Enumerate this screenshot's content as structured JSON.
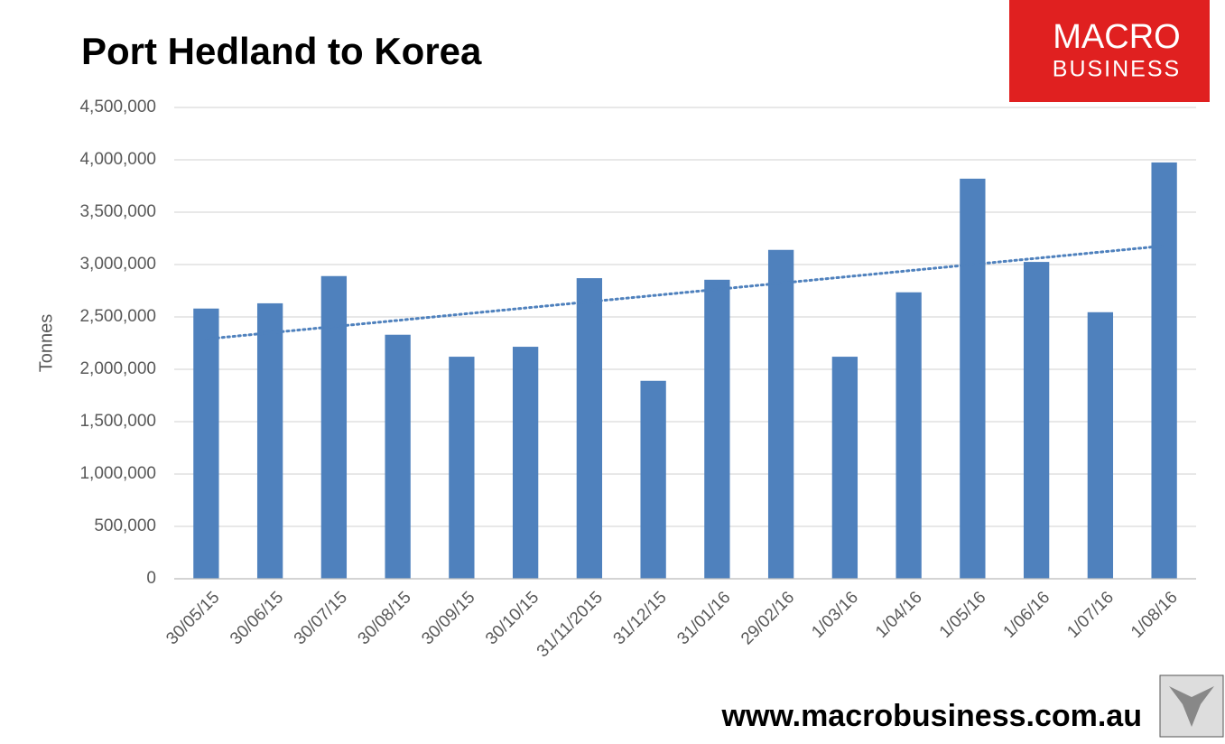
{
  "chart_data": {
    "type": "bar",
    "title": "Port Hedland to Korea",
    "y_label": "Tonnes",
    "categories": [
      "30/05/15",
      "30/06/15",
      "30/07/15",
      "30/08/15",
      "30/09/15",
      "30/10/15",
      "31/11/2015",
      "31/12/15",
      "31/01/16",
      "29/02/16",
      "1/03/16",
      "1/04/16",
      "1/05/16",
      "1/06/16",
      "1/07/16",
      "1/08/16"
    ],
    "values": [
      2580000,
      2630000,
      2890000,
      2330000,
      2120000,
      2215000,
      2870000,
      1890000,
      2855000,
      3140000,
      2120000,
      2735000,
      3820000,
      3025000,
      2545000,
      3975000
    ],
    "color": "#4f81bd",
    "trendline": true,
    "ylim": [
      0,
      4500000
    ],
    "yticks": [
      0,
      {
        "value": 500000,
        "label": "500,000"
      },
      {
        "value": 1000000,
        "label": "1,000,000"
      },
      {
        "value": 1500000,
        "label": "1,500,000"
      },
      {
        "value": 2000000,
        "label": "2,000,000"
      },
      {
        "value": 2500000,
        "label": "2,500,000"
      },
      {
        "value": 3000000,
        "label": "3,000,000"
      },
      {
        "value": 3500000,
        "label": "3,500,000"
      },
      {
        "value": 4000000,
        "label": "4,000,000"
      },
      {
        "value": 4500000,
        "label": "4,500,000"
      }
    ],
    "grid": true
  },
  "logo": {
    "line1": "MACRO",
    "line2": "BUSINESS"
  },
  "footer": "www.macrobusiness.com.au"
}
